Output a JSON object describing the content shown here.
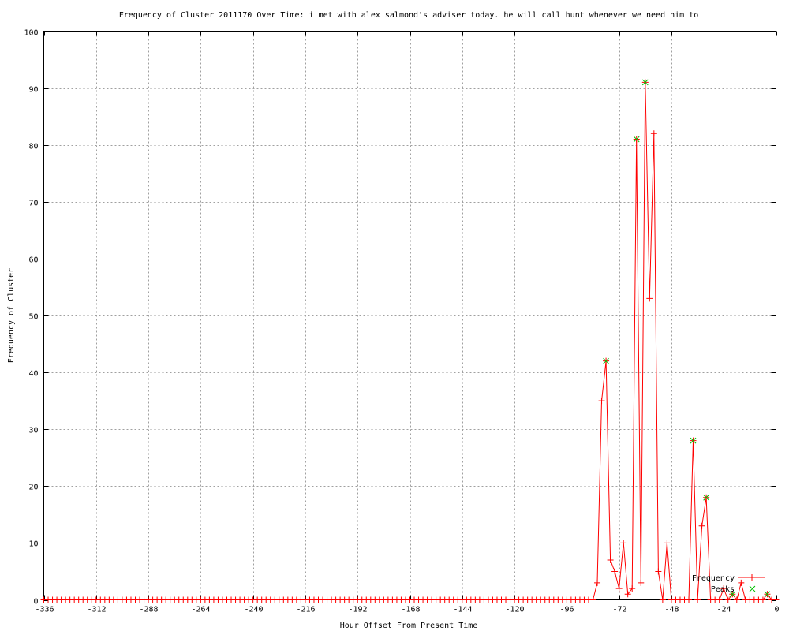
{
  "chart_data": {
    "type": "line",
    "title": "Frequency of Cluster 2011170 Over Time: i met with alex salmond's adviser today. he will call hunt whenever we need him to",
    "xlabel": "Hour Offset From Present Time",
    "ylabel": "Frequency of Cluster",
    "xlim": [
      -336,
      0
    ],
    "ylim": [
      0,
      100
    ],
    "x_ticks": [
      -336,
      -312,
      -288,
      -264,
      -240,
      -216,
      -192,
      -168,
      -144,
      -120,
      -96,
      -72,
      -48,
      -24,
      0
    ],
    "y_ticks": [
      0,
      10,
      20,
      30,
      40,
      50,
      60,
      70,
      80,
      90,
      100
    ],
    "grid": true,
    "legend_position": "bottom-right",
    "series": [
      {
        "name": "Frequency",
        "color": "#ff0000",
        "marker": "plus",
        "x": [
          -336,
          -334,
          -332,
          -330,
          -328,
          -326,
          -324,
          -322,
          -320,
          -318,
          -316,
          -314,
          -312,
          -310,
          -308,
          -306,
          -304,
          -302,
          -300,
          -298,
          -296,
          -294,
          -292,
          -290,
          -288,
          -286,
          -284,
          -282,
          -280,
          -278,
          -276,
          -274,
          -272,
          -270,
          -268,
          -266,
          -264,
          -262,
          -260,
          -258,
          -256,
          -254,
          -252,
          -250,
          -248,
          -246,
          -244,
          -242,
          -240,
          -238,
          -236,
          -234,
          -232,
          -230,
          -228,
          -226,
          -224,
          -222,
          -220,
          -218,
          -216,
          -214,
          -212,
          -210,
          -208,
          -206,
          -204,
          -202,
          -200,
          -198,
          -196,
          -194,
          -192,
          -190,
          -188,
          -186,
          -184,
          -182,
          -180,
          -178,
          -176,
          -174,
          -172,
          -170,
          -168,
          -166,
          -164,
          -162,
          -160,
          -158,
          -156,
          -154,
          -152,
          -150,
          -148,
          -146,
          -144,
          -142,
          -140,
          -138,
          -136,
          -134,
          -132,
          -130,
          -128,
          -126,
          -124,
          -122,
          -120,
          -118,
          -116,
          -114,
          -112,
          -110,
          -108,
          -106,
          -104,
          -102,
          -100,
          -98,
          -96,
          -94,
          -92,
          -90,
          -88,
          -86,
          -84,
          -82,
          -80,
          -78,
          -76,
          -74,
          -72,
          -70,
          -68,
          -66,
          -64,
          -62,
          -60,
          -58,
          -56,
          -54,
          -52,
          -50,
          -48,
          -46,
          -44,
          -42,
          -40,
          -38,
          -36,
          -34,
          -32,
          -30,
          -28,
          -26,
          -24,
          -22,
          -20,
          -18,
          -16,
          -14,
          -12,
          -10,
          -8,
          -6,
          -4,
          -2,
          0
        ],
        "y": [
          0,
          0,
          0,
          0,
          0,
          0,
          0,
          0,
          0,
          0,
          0,
          0,
          0,
          0,
          0,
          0,
          0,
          0,
          0,
          0,
          0,
          0,
          0,
          0,
          0,
          0,
          0,
          0,
          0,
          0,
          0,
          0,
          0,
          0,
          0,
          0,
          0,
          0,
          0,
          0,
          0,
          0,
          0,
          0,
          0,
          0,
          0,
          0,
          0,
          0,
          0,
          0,
          0,
          0,
          0,
          0,
          0,
          0,
          0,
          0,
          0,
          0,
          0,
          0,
          0,
          0,
          0,
          0,
          0,
          0,
          0,
          0,
          0,
          0,
          0,
          0,
          0,
          0,
          0,
          0,
          0,
          0,
          0,
          0,
          0,
          0,
          0,
          0,
          0,
          0,
          0,
          0,
          0,
          0,
          0,
          0,
          0,
          0,
          0,
          0,
          0,
          0,
          0,
          0,
          0,
          0,
          0,
          0,
          0,
          0,
          0,
          0,
          0,
          0,
          0,
          0,
          0,
          0,
          0,
          0,
          0,
          0,
          0,
          0,
          0,
          0,
          0,
          3,
          35,
          42,
          7,
          5,
          2,
          10,
          1,
          2,
          81,
          3,
          91,
          53,
          82,
          5,
          0,
          10,
          0,
          0,
          0,
          0,
          0,
          28,
          0,
          13,
          18,
          0,
          0,
          0,
          2,
          0,
          1,
          0,
          3,
          0,
          0,
          0,
          0,
          0,
          1,
          0,
          0
        ]
      },
      {
        "name": "Peaks",
        "color": "#00c000",
        "marker": "x",
        "x": [
          -78,
          -64,
          -60,
          -38,
          -32,
          -20,
          -4
        ],
        "y": [
          42,
          81,
          91,
          28,
          18,
          1,
          1
        ]
      }
    ]
  }
}
